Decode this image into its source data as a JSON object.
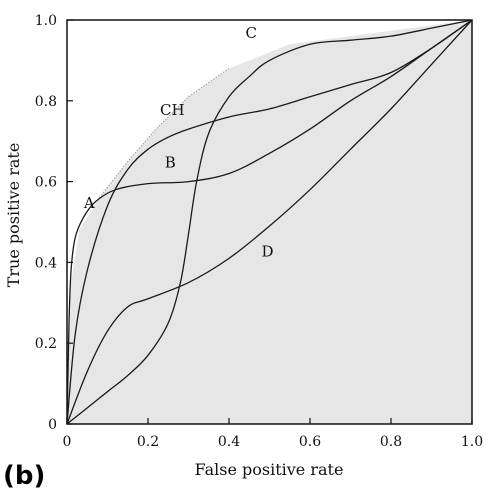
{
  "panel_label": "(b)",
  "chart_data": {
    "type": "line",
    "title": "",
    "xlabel": "False positive rate",
    "ylabel": "True positive rate",
    "xlim": [
      0,
      1
    ],
    "ylim": [
      0,
      1
    ],
    "x_ticks": [
      "0",
      "0.2",
      "0.4",
      "0.6",
      "0.8",
      "1.0"
    ],
    "y_ticks": [
      "0",
      "0.2",
      "0.4",
      "0.6",
      "0.8",
      "1.0"
    ],
    "grid": false,
    "legend": "none",
    "colors": {
      "lines": "#1a1a1a",
      "hull_fill": "#e6e6e6",
      "hull_edge": "#9a9a9a"
    },
    "convex_hull": {
      "label": "CH",
      "x": [
        0,
        0.01,
        0.03,
        0.08,
        0.15,
        0.22,
        0.3,
        0.4,
        0.55,
        1.0
      ],
      "y": [
        0,
        0.35,
        0.48,
        0.56,
        0.65,
        0.73,
        0.81,
        0.88,
        0.94,
        1.0
      ]
    },
    "series": [
      {
        "name": "A",
        "x": [
          0,
          0.005,
          0.01,
          0.02,
          0.04,
          0.07,
          0.12,
          0.2,
          0.3,
          0.4,
          0.5,
          0.6,
          0.7,
          0.8,
          0.9,
          1.0
        ],
        "y": [
          0,
          0.25,
          0.38,
          0.46,
          0.51,
          0.55,
          0.58,
          0.595,
          0.6,
          0.62,
          0.67,
          0.73,
          0.8,
          0.86,
          0.93,
          1.0
        ]
      },
      {
        "name": "B",
        "x": [
          0,
          0.02,
          0.05,
          0.1,
          0.15,
          0.2,
          0.25,
          0.3,
          0.4,
          0.5,
          0.6,
          0.7,
          0.8,
          0.9,
          1.0
        ],
        "y": [
          0,
          0.22,
          0.38,
          0.54,
          0.63,
          0.68,
          0.71,
          0.73,
          0.76,
          0.78,
          0.81,
          0.84,
          0.87,
          0.93,
          1.0
        ]
      },
      {
        "name": "C",
        "x": [
          0,
          0.05,
          0.1,
          0.15,
          0.2,
          0.25,
          0.28,
          0.3,
          0.32,
          0.35,
          0.4,
          0.45,
          0.5,
          0.6,
          0.7,
          0.8,
          0.9,
          1.0
        ],
        "y": [
          0,
          0.04,
          0.08,
          0.12,
          0.17,
          0.25,
          0.35,
          0.47,
          0.6,
          0.72,
          0.81,
          0.86,
          0.9,
          0.94,
          0.95,
          0.96,
          0.98,
          1.0
        ]
      },
      {
        "name": "D",
        "x": [
          0,
          0.05,
          0.1,
          0.15,
          0.2,
          0.3,
          0.4,
          0.5,
          0.6,
          0.7,
          0.8,
          0.9,
          1.0
        ],
        "y": [
          0,
          0.13,
          0.23,
          0.29,
          0.31,
          0.35,
          0.41,
          0.49,
          0.58,
          0.68,
          0.78,
          0.89,
          1.0
        ]
      }
    ]
  }
}
